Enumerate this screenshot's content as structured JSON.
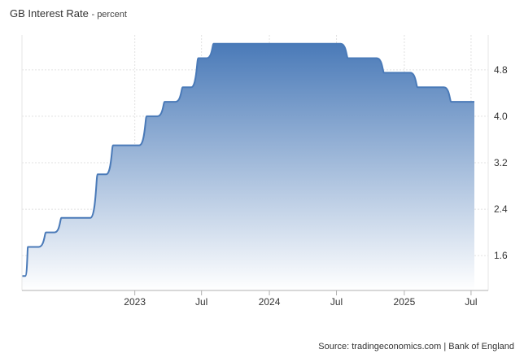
{
  "title": "GB Interest Rate",
  "subtitle": "percent",
  "source": "Source: tradingeconomics.com | Bank of England",
  "chart_data": {
    "type": "area",
    "title": "GB Interest Rate",
    "subtitle": "percent",
    "xlabel": "",
    "ylabel": "",
    "ylim": [
      1.0,
      5.4
    ],
    "yticks": [
      1.6,
      2.4,
      3.2,
      4.0,
      4.8
    ],
    "ytick_labels": [
      "1.6",
      "2.4",
      "3.2",
      "4.0",
      "4.8"
    ],
    "xlim": [
      "2022-03-01",
      "2025-07-20"
    ],
    "xticks": [
      "2023-01-01",
      "2023-07-01",
      "2024-01-01",
      "2024-07-01",
      "2025-01-01",
      "2025-07-01"
    ],
    "xtick_labels": [
      "2023",
      "Jul",
      "2024",
      "Jul",
      "2025",
      "Jul"
    ],
    "grid": true,
    "line_color": "#4a7ab8",
    "fill_top_color": "#4a7ab8",
    "fill_bottom_color": "#ffffff",
    "x": [
      "2022-03-01",
      "2022-03-17",
      "2022-05-05",
      "2022-06-16",
      "2022-08-04",
      "2022-09-22",
      "2022-11-03",
      "2022-12-15",
      "2023-02-02",
      "2023-03-23",
      "2023-05-11",
      "2023-06-22",
      "2023-08-03",
      "2024-08-01",
      "2024-11-07",
      "2025-02-06",
      "2025-05-08",
      "2025-07-10"
    ],
    "values": [
      1.25,
      1.75,
      2.0,
      2.25,
      2.25,
      3.0,
      3.5,
      3.5,
      4.0,
      4.25,
      4.5,
      5.0,
      5.25,
      5.0,
      4.75,
      4.5,
      4.25,
      4.25
    ]
  }
}
